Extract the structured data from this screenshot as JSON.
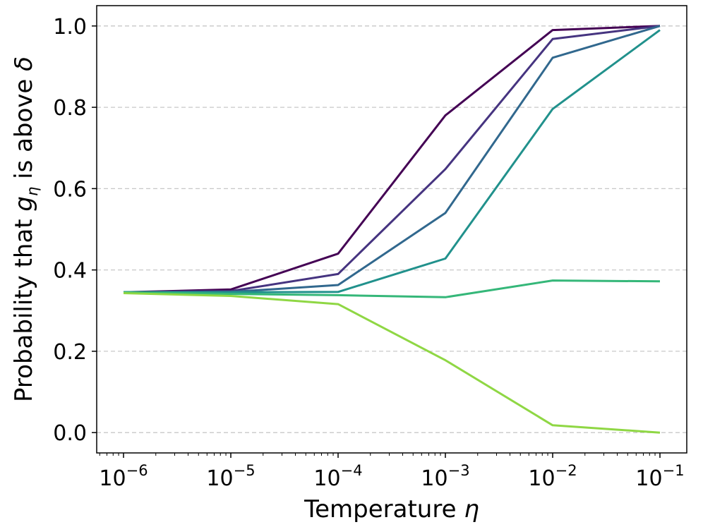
{
  "chart_data": {
    "type": "line",
    "title": "",
    "xlabel": "Temperature",
    "xlabel_symbol": "η",
    "ylabel_prefix": "Probability that ",
    "ylabel_var": "g",
    "ylabel_sub": "η",
    "ylabel_mid": " is above ",
    "ylabel_symbol": "δ",
    "xscale": "log",
    "x": [
      1e-06,
      1e-05,
      0.0001,
      0.001,
      0.01,
      0.1
    ],
    "x_tick_labels": [
      {
        "base": "10",
        "exp": "−6"
      },
      {
        "base": "10",
        "exp": "−5"
      },
      {
        "base": "10",
        "exp": "−4"
      },
      {
        "base": "10",
        "exp": "−3"
      },
      {
        "base": "10",
        "exp": "−2"
      },
      {
        "base": "10",
        "exp": "−1"
      }
    ],
    "y_ticks": [
      0.0,
      0.2,
      0.4,
      0.6,
      0.8,
      1.0
    ],
    "y_tick_labels": [
      "0.0",
      "0.2",
      "0.4",
      "0.6",
      "0.8",
      "1.0"
    ],
    "xlim_log10": [
      -6.25,
      -0.75
    ],
    "ylim": [
      -0.05,
      1.05
    ],
    "grid": "y-dashed",
    "series": [
      {
        "name": "series-1",
        "color": "#440154",
        "values": [
          0.345,
          0.352,
          0.44,
          0.78,
          0.99,
          1.0
        ]
      },
      {
        "name": "series-2",
        "color": "#463480",
        "values": [
          0.345,
          0.348,
          0.39,
          0.648,
          0.968,
          1.0
        ]
      },
      {
        "name": "series-3",
        "color": "#31688e",
        "values": [
          0.345,
          0.346,
          0.363,
          0.54,
          0.922,
          1.0
        ]
      },
      {
        "name": "series-4",
        "color": "#21918c",
        "values": [
          0.345,
          0.345,
          0.346,
          0.428,
          0.796,
          0.99
        ]
      },
      {
        "name": "series-5",
        "color": "#35b779",
        "values": [
          0.345,
          0.341,
          0.338,
          0.333,
          0.374,
          0.372
        ]
      },
      {
        "name": "series-6",
        "color": "#8fd744",
        "values": [
          0.343,
          0.336,
          0.316,
          0.178,
          0.018,
          0.0
        ]
      }
    ]
  }
}
